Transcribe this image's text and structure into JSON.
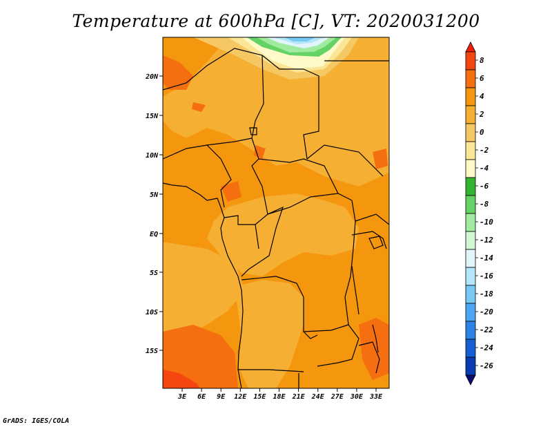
{
  "title": "Temperature at 600hPa [C], VT: 2020031200",
  "credit": "GrADS: IGES/COLA",
  "map": {
    "lat_labels": [
      "20N",
      "15N",
      "10N",
      "5N",
      "EQ",
      "5S",
      "10S",
      "15S"
    ],
    "lon_labels": [
      "3E",
      "6E",
      "9E",
      "12E",
      "15E",
      "18E",
      "21E",
      "24E",
      "27E",
      "30E",
      "33E"
    ]
  },
  "colorbar": {
    "labels": [
      "8",
      "6",
      "4",
      "2",
      "0",
      "-2",
      "-4",
      "-6",
      "-8",
      "-10",
      "-12",
      "-14",
      "-16",
      "-18",
      "-20",
      "-22",
      "-24",
      "-26"
    ],
    "colors": [
      "#f01e0a",
      "#f5460f",
      "#f56e0f",
      "#f5960f",
      "#f5af32",
      "#f5c864",
      "#fae696",
      "#fffac8",
      "#32b432",
      "#64d264",
      "#a0eba0",
      "#d2f5d2",
      "#e1f5fa",
      "#b4e6fa",
      "#78c8f5",
      "#4ba5f0",
      "#2d82e6",
      "#1460d2",
      "#0a3cb4",
      "#0a0a6e"
    ]
  }
}
